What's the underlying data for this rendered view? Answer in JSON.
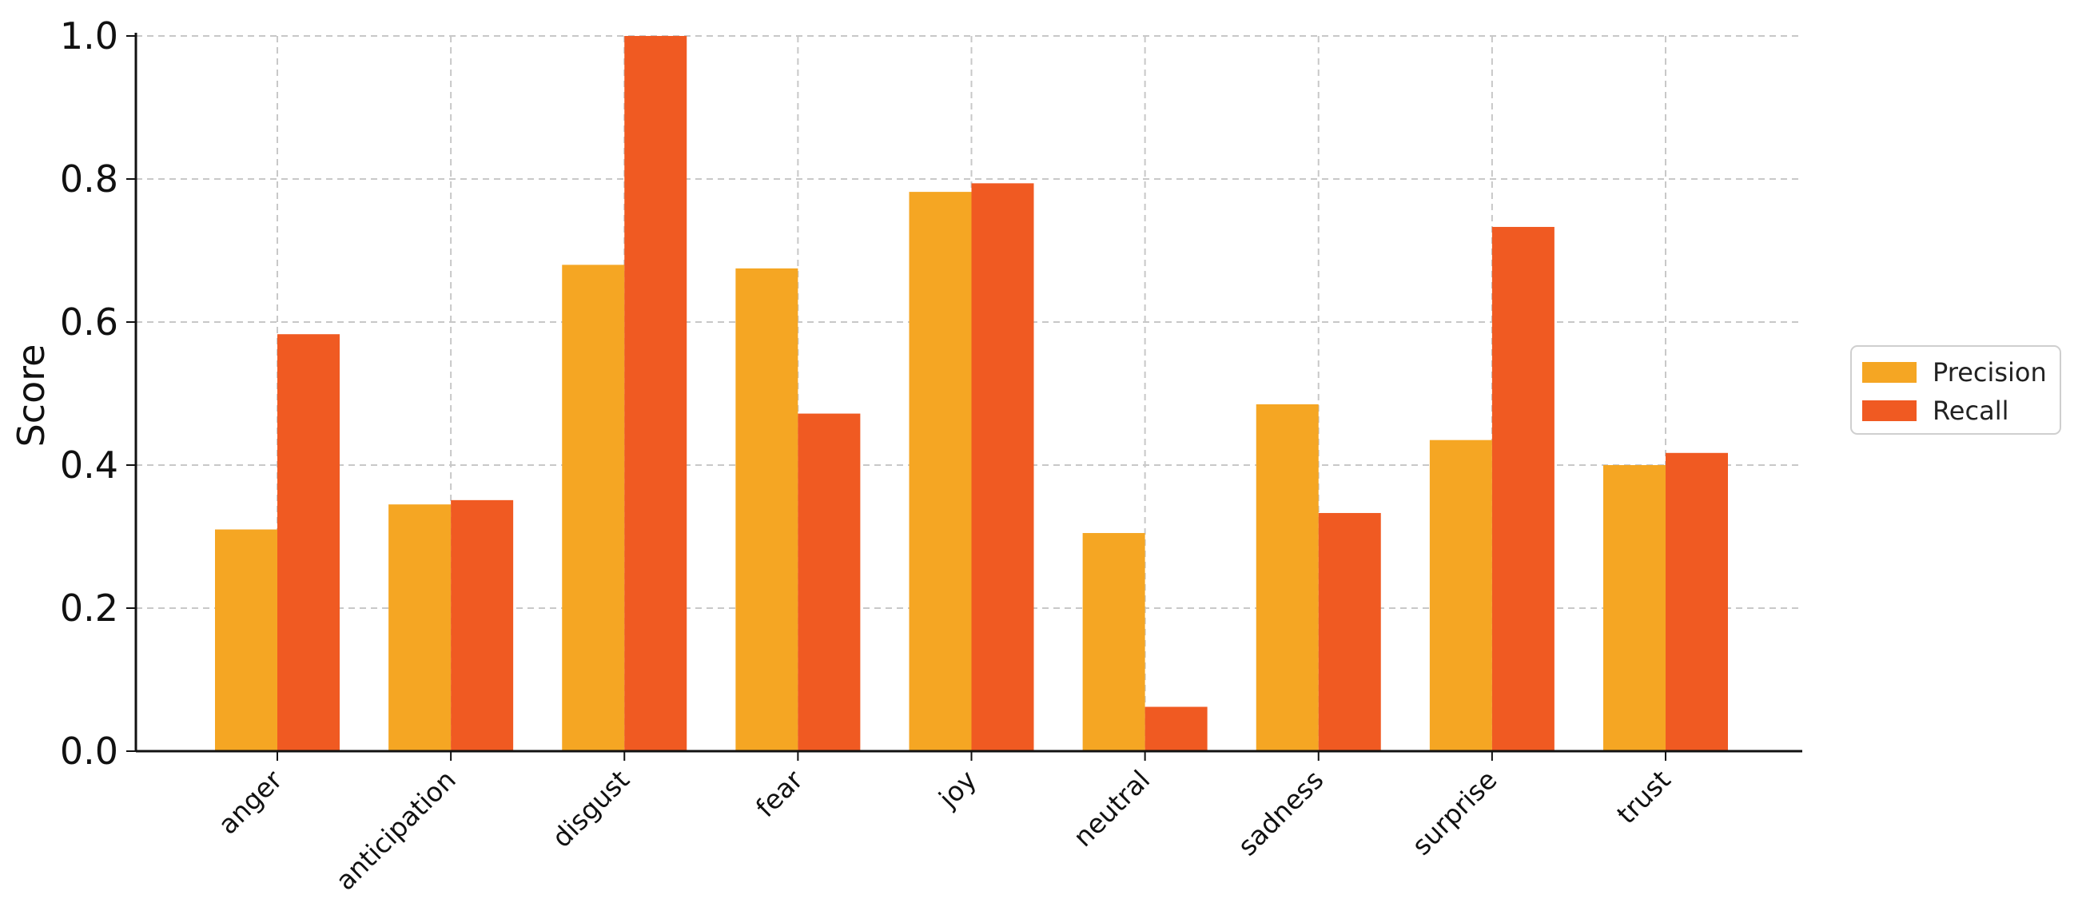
{
  "chart_data": {
    "type": "bar",
    "title": "",
    "xlabel": "",
    "ylabel": "Score",
    "ylim": [
      0,
      1.0
    ],
    "yticks": [
      "0.0",
      "0.2",
      "0.4",
      "0.6",
      "0.8",
      "1.0"
    ],
    "grid": true,
    "legend_position": "right",
    "categories": [
      "anger",
      "anticipation",
      "disgust",
      "fear",
      "joy",
      "neutral",
      "sadness",
      "surprise",
      "trust"
    ],
    "series": [
      {
        "name": "Precision",
        "color": "#F5A623",
        "values": [
          0.31,
          0.345,
          0.68,
          0.675,
          0.782,
          0.305,
          0.485,
          0.435,
          0.4
        ]
      },
      {
        "name": "Recall",
        "color": "#F05A22",
        "values": [
          0.583,
          0.351,
          1.0,
          0.472,
          0.794,
          0.062,
          0.333,
          0.733,
          0.417
        ]
      }
    ]
  }
}
